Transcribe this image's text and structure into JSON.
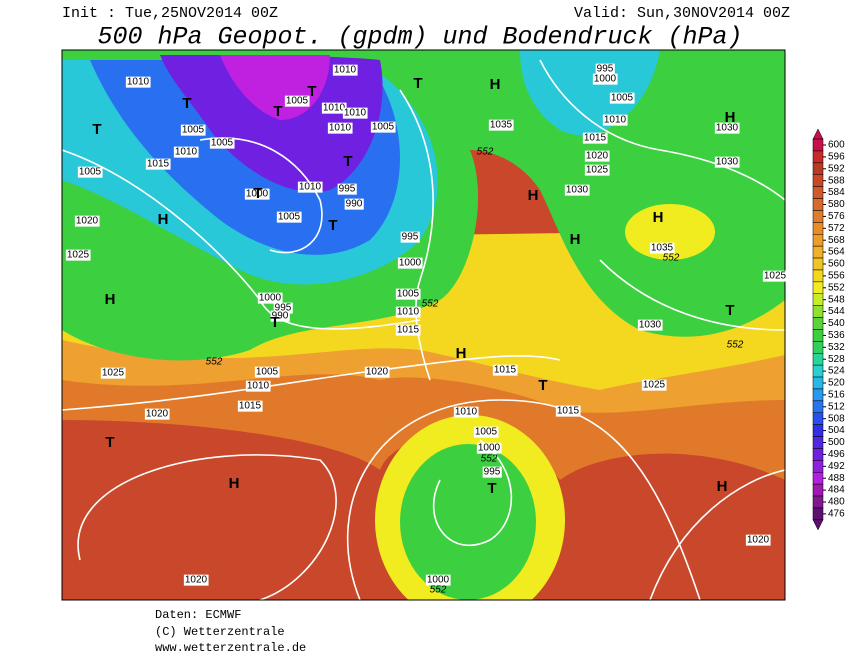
{
  "header": {
    "init": "Init : Tue,25NOV2014 00Z",
    "valid": "Valid: Sun,30NOV2014 00Z",
    "title": "500 hPa Geopot. (gpdm) und Bodendruck (hPa)"
  },
  "isobar_labels": [
    "1010",
    "1005",
    "1005",
    "1010",
    "1015",
    "1005",
    "1020",
    "1025",
    "1010",
    "1005",
    "1010",
    "1010",
    "1010",
    "1005",
    "995",
    "990",
    "1010",
    "1005",
    "1000",
    "995",
    "1000",
    "1000",
    "995",
    "990",
    "1005",
    "1010",
    "1015",
    "1035",
    "995",
    "1000",
    "1005",
    "1010",
    "1015",
    "1020",
    "1025",
    "1030",
    "1030",
    "1030",
    "1035",
    "1025",
    "1030",
    "1025",
    "1015",
    "1015",
    "1010",
    "1005",
    "1000",
    "995",
    "1020",
    "1005",
    "1010",
    "1015",
    "1020",
    "1025",
    "1020",
    "1000",
    "1020"
  ],
  "geopotential_labels": [
    "552",
    "552",
    "552",
    "552",
    "552",
    "552",
    "552"
  ],
  "pressure_centers": [
    "T",
    "T",
    "T",
    "T",
    "H",
    "H",
    "T",
    "T",
    "T",
    "T",
    "T",
    "H",
    "H",
    "H",
    "H",
    "H",
    "T",
    "H",
    "T",
    "T",
    "H",
    "T",
    "H"
  ],
  "colorbar": {
    "ticks": [
      600,
      596,
      592,
      588,
      584,
      580,
      576,
      572,
      568,
      564,
      560,
      556,
      552,
      548,
      544,
      540,
      536,
      532,
      528,
      524,
      520,
      516,
      512,
      508,
      504,
      500,
      496,
      492,
      488,
      484,
      480,
      476
    ],
    "colors": [
      "#c8104a",
      "#c82a2a",
      "#b83a20",
      "#c84828",
      "#d05a2a",
      "#d86a2a",
      "#e07c2a",
      "#e88c28",
      "#f09c28",
      "#f0b028",
      "#f0c424",
      "#f4d820",
      "#f0ec20",
      "#c8ec28",
      "#90e030",
      "#5ad43a",
      "#3cd040",
      "#30d060",
      "#28d49c",
      "#28d0d0",
      "#28b8e8",
      "#2898f0",
      "#2874f0",
      "#2850f0",
      "#3030e8",
      "#5028e0",
      "#7020e0",
      "#9020e0",
      "#b420e0",
      "#a018b0",
      "#801890",
      "#601070"
    ]
  },
  "footer": {
    "source": "Daten: ECMWF",
    "copyright": "(C) Wetterzentrale",
    "url": "www.wetterzentrale.de"
  }
}
